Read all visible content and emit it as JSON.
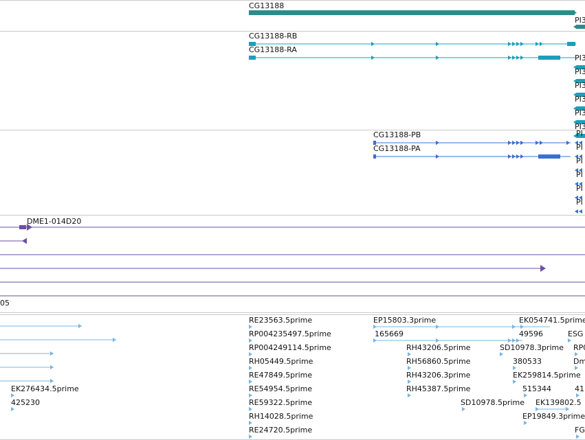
{
  "colors": {
    "gene": "#2e8b8b",
    "transcript": "#1aa0b8",
    "protein": "#3b6fd0",
    "clone": "#6a4fa8",
    "est": "#7ab5e0"
  },
  "tracks": [
    {
      "name": "gene",
      "color": "gene",
      "features": [
        {
          "label": "CG13188"
        },
        {
          "label": "PI3"
        }
      ]
    },
    {
      "name": "transcripts",
      "color": "transcript",
      "features": [
        {
          "label": "CG13188-RB"
        },
        {
          "label": "CG13188-RA"
        },
        {
          "label": "PI3"
        },
        {
          "label": "PI3"
        },
        {
          "label": "PI3"
        },
        {
          "label": "PI3"
        },
        {
          "label": "PI3"
        },
        {
          "label": "PI3"
        }
      ]
    },
    {
      "name": "proteins",
      "color": "protein",
      "features": [
        {
          "label": "CG13188-PB"
        },
        {
          "label": "CG13188-PA"
        },
        {
          "label": "PI"
        },
        {
          "label": "PI"
        },
        {
          "label": "PI"
        },
        {
          "label": "PI"
        },
        {
          "label": "PI"
        },
        {
          "label": "PI"
        }
      ]
    },
    {
      "name": "clones",
      "color": "clone",
      "features": [
        {
          "label": "DME1-014D20"
        },
        {
          "label": "05"
        }
      ]
    },
    {
      "name": "ests",
      "color": "est",
      "features": [
        {
          "label": "EK276434.5prime"
        },
        {
          "label": "425230"
        },
        {
          "label": "RE23563.5prime"
        },
        {
          "label": "RP004235497.5prime"
        },
        {
          "label": "RP004249114.5prime"
        },
        {
          "label": "RH05449.5prime"
        },
        {
          "label": "RE47849.5prime"
        },
        {
          "label": "RE54954.5prime"
        },
        {
          "label": "RE59322.5prime"
        },
        {
          "label": "RH14028.5prime"
        },
        {
          "label": "RE24720.5prime"
        },
        {
          "label": "EP15803.3prime"
        },
        {
          "label": "165669"
        },
        {
          "label": "RH43206.5prime"
        },
        {
          "label": "RH56860.5prime"
        },
        {
          "label": "RH43206.3prime"
        },
        {
          "label": "RH45387.5prime"
        },
        {
          "label": "SD10978.5prime"
        },
        {
          "label": "EK054741.5prime"
        },
        {
          "label": "49596"
        },
        {
          "label": "SD10978.3prime"
        },
        {
          "label": "380533"
        },
        {
          "label": "EK259814.5prime"
        },
        {
          "label": "515344"
        },
        {
          "label": "EK139802.5"
        },
        {
          "label": "EP19849.3prime"
        },
        {
          "label": "ESG"
        },
        {
          "label": "RP0"
        },
        {
          "label": "Dm"
        },
        {
          "label": "41"
        },
        {
          "label": "FG"
        }
      ]
    }
  ]
}
